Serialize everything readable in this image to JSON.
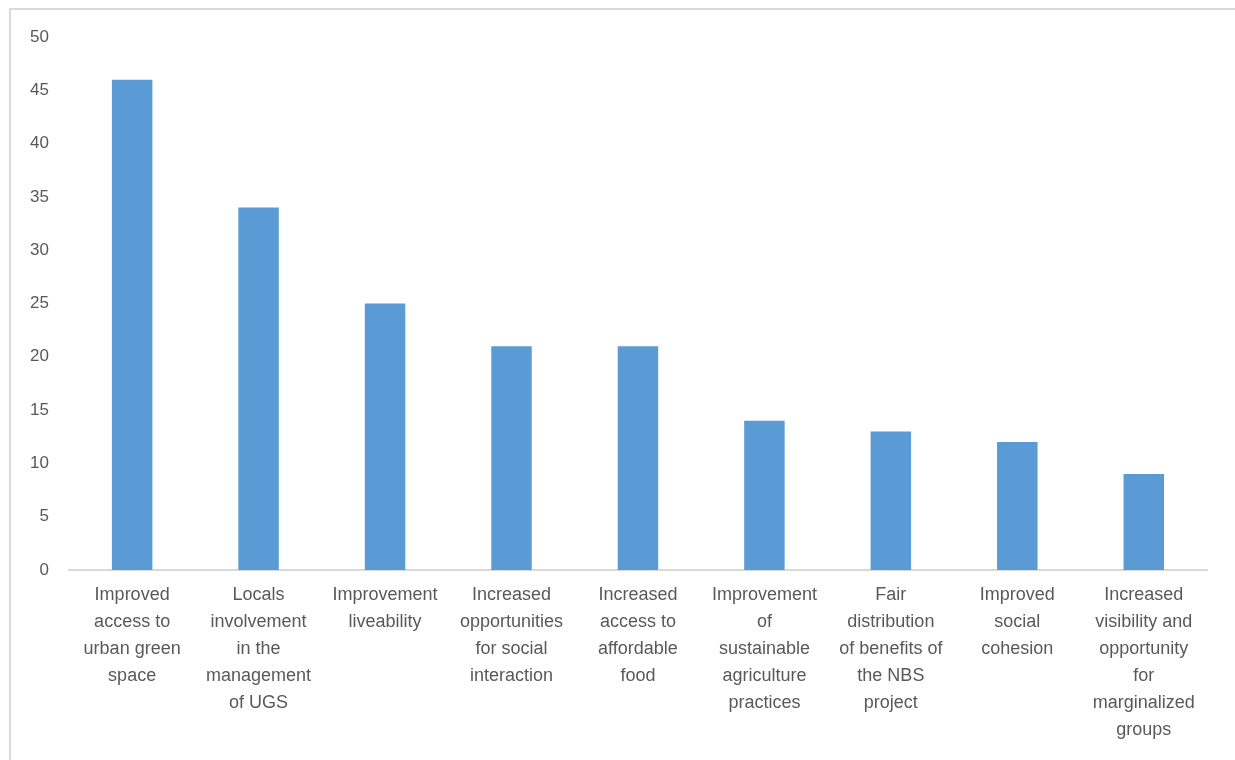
{
  "chart_data": {
    "type": "bar",
    "categories": [
      "Improved access to urban green space",
      "Locals involvement in the management of UGS",
      "Improvement liveability",
      "Increased opportunities for social interaction",
      "Increased access to affordable food",
      "Improvement of sustainable agriculture practices",
      "Fair distribution of benefits of the NBS project",
      "Improved social cohesion",
      "Increased visibility and opportunity for marginalized groups"
    ],
    "values": [
      46,
      34,
      25,
      21,
      21,
      14,
      13,
      12,
      9
    ],
    "color": "#5b9bd5",
    "ylim": [
      0,
      50
    ],
    "yticks": [
      0,
      5,
      10,
      15,
      20,
      25,
      30,
      35,
      40,
      45,
      50
    ]
  }
}
